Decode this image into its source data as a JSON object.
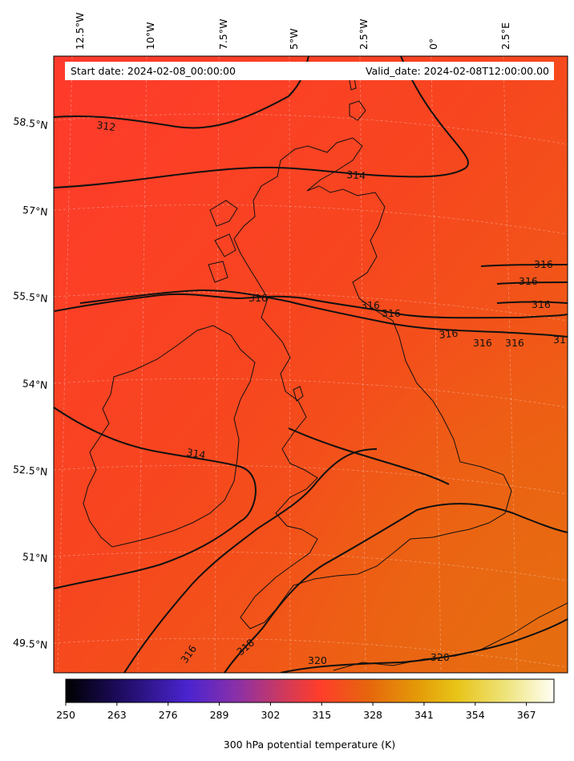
{
  "header": {
    "start_date": "Start date: 2024-02-08_00:00:00",
    "valid_date": "Valid_date: 2024-02-08T12:00:00.00"
  },
  "map": {
    "lon_labels": [
      "12.5°W",
      "10°W",
      "7.5°W",
      "5°W",
      "2.5°W",
      "0°",
      "2.5°E"
    ],
    "lat_labels": [
      "58.5°N",
      "57°N",
      "55.5°N",
      "54°N",
      "52.5°N",
      "51°N",
      "49.5°N"
    ],
    "contour_labels": [
      "312",
      "314",
      "316",
      "316",
      "316",
      "316",
      "316",
      "316",
      "316",
      "316",
      "316",
      "31",
      "314",
      "316",
      "318",
      "320",
      "320"
    ],
    "colors": {
      "cool": "#ff3d2a",
      "mid": "#f5501a",
      "warm": "#ea6a10",
      "contour": "#111111"
    }
  },
  "colorbar": {
    "title": "300 hPa potential temperature (K)",
    "ticks": [
      "250",
      "263",
      "276",
      "289",
      "302",
      "315",
      "328",
      "341",
      "354",
      "367"
    ],
    "range": [
      250,
      374
    ]
  }
}
